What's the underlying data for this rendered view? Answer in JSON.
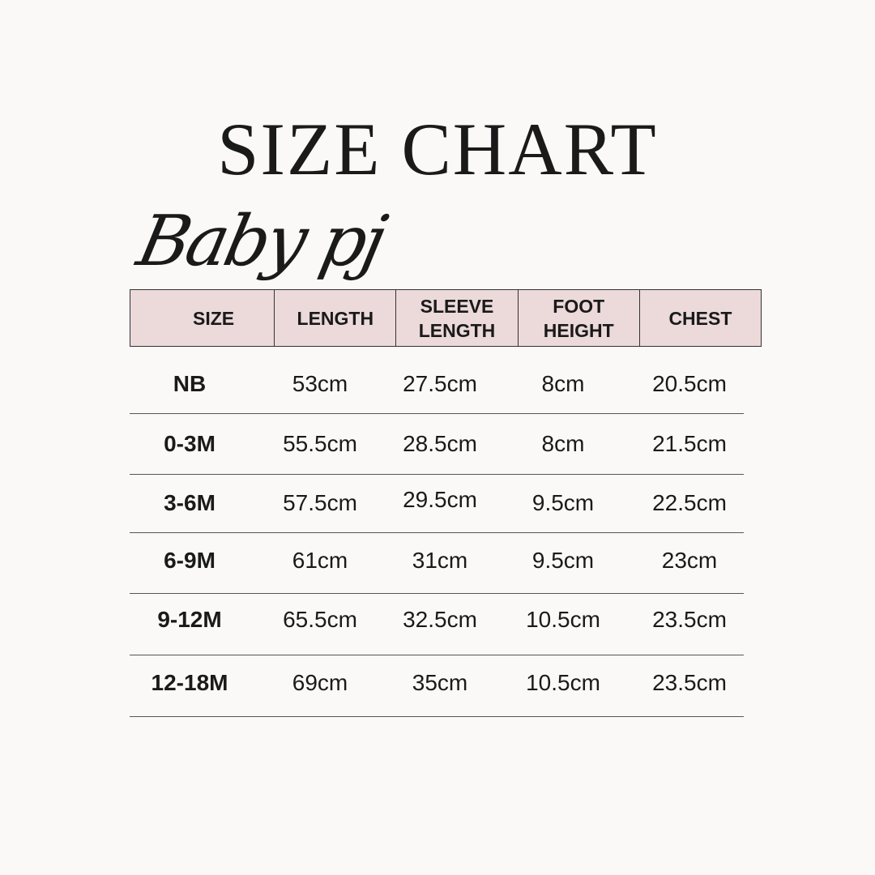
{
  "title": "SIZE CHART",
  "subtitle": "Baby pj",
  "colors": {
    "background": "#faf9f7",
    "header_fill": "#ecd9da",
    "text": "#1a1a1a"
  },
  "table": {
    "headers": [
      "SIZE",
      "LENGTH",
      "SLEEVE\nLENGTH",
      "FOOT\nHEIGHT",
      "CHEST"
    ],
    "rows": [
      [
        "NB",
        "53cm",
        "27.5cm",
        "8cm",
        "20.5cm"
      ],
      [
        "0-3M",
        "55.5cm",
        "28.5cm",
        "8cm",
        "21.5cm"
      ],
      [
        "3-6M",
        "57.5cm",
        "29.5cm",
        "9.5cm",
        "22.5cm"
      ],
      [
        "6-9M",
        "61cm",
        "31cm",
        "9.5cm",
        "23cm"
      ],
      [
        "9-12M",
        "65.5cm",
        "32.5cm",
        "10.5cm",
        "23.5cm"
      ],
      [
        "12-18M",
        "69cm",
        "35cm",
        "10.5cm",
        "23.5cm"
      ]
    ]
  }
}
